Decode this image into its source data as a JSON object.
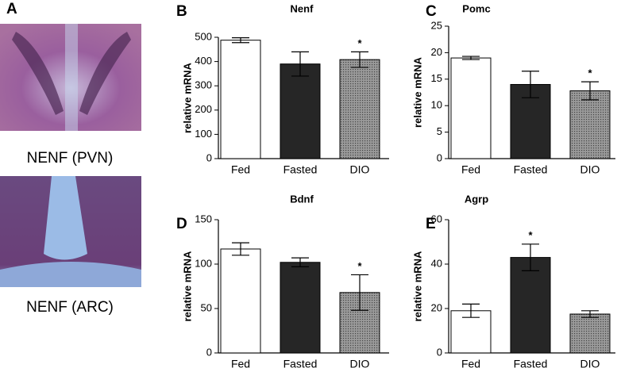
{
  "figure": {
    "panel_a": {
      "letter": "A",
      "captions": [
        "NENF (PVN)",
        "NENF (ARC)"
      ]
    }
  },
  "chart_data": [
    {
      "type": "bar",
      "letter": "B",
      "title": "Nenf",
      "ylabel": "relative mRNA",
      "categories": [
        "Fed",
        "Fasted",
        "DIO"
      ],
      "values": [
        488,
        390,
        408
      ],
      "errors": [
        10,
        50,
        32
      ],
      "colors": [
        "#ffffff",
        "#262626",
        "#8c8c8c"
      ],
      "ylim": [
        0,
        500
      ],
      "yticks": [
        0,
        100,
        200,
        300,
        400,
        500
      ],
      "annotations": [
        {
          "category": "DIO",
          "text": "*"
        }
      ]
    },
    {
      "type": "bar",
      "letter": "C",
      "title": "Pomc",
      "ylabel": "relative mRNA",
      "categories": [
        "Fed",
        "Fasted",
        "DIO"
      ],
      "values": [
        19,
        14,
        12.8
      ],
      "errors": [
        0.3,
        2.5,
        1.7
      ],
      "colors": [
        "#ffffff",
        "#262626",
        "#8c8c8c"
      ],
      "ylim": [
        0,
        25
      ],
      "yticks": [
        0,
        5,
        10,
        15,
        20,
        25
      ],
      "annotations": [
        {
          "category": "DIO",
          "text": "*"
        }
      ]
    },
    {
      "type": "bar",
      "letter": "D",
      "title": "Bdnf",
      "ylabel": "relative mRNA",
      "categories": [
        "Fed",
        "Fasted",
        "DIO"
      ],
      "values": [
        117,
        102,
        68
      ],
      "errors": [
        7,
        5,
        20
      ],
      "colors": [
        "#ffffff",
        "#262626",
        "#8c8c8c"
      ],
      "ylim": [
        0,
        150
      ],
      "yticks": [
        0,
        50,
        100,
        150
      ],
      "annotations": [
        {
          "category": "DIO",
          "text": "*"
        }
      ]
    },
    {
      "type": "bar",
      "letter": "E",
      "title": "Agrp",
      "ylabel": "relative mRNA",
      "categories": [
        "Fed",
        "Fasted",
        "DIO"
      ],
      "values": [
        19,
        43,
        17.5
      ],
      "errors": [
        3,
        6,
        1.5
      ],
      "colors": [
        "#ffffff",
        "#262626",
        "#8c8c8c"
      ],
      "ylim": [
        0,
        60
      ],
      "yticks": [
        0,
        20,
        40,
        60
      ],
      "annotations": [
        {
          "category": "Fasted",
          "text": "*"
        }
      ]
    }
  ]
}
